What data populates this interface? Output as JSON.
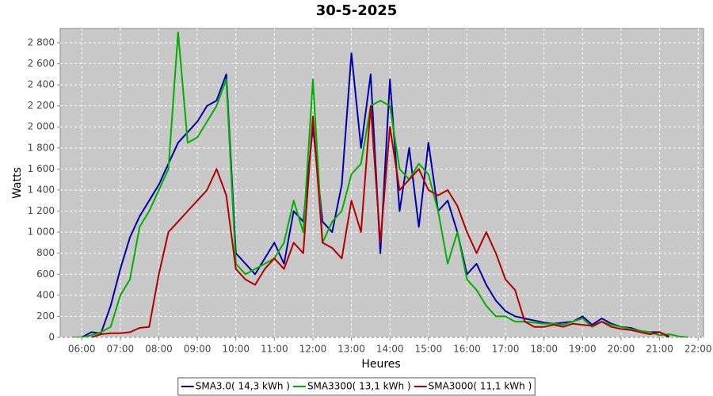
{
  "chart_data": {
    "type": "line",
    "title": "30-5-2025",
    "x_label": "Heures",
    "y_label": "Watts",
    "x": [
      5.75,
      6,
      6.25,
      6.5,
      6.75,
      7,
      7.25,
      7.5,
      7.75,
      8,
      8.25,
      8.5,
      8.75,
      9,
      9.25,
      9.5,
      9.75,
      10,
      10.25,
      10.5,
      10.75,
      11,
      11.25,
      11.5,
      11.75,
      12,
      12.25,
      12.5,
      12.75,
      13,
      13.25,
      13.5,
      13.75,
      14,
      14.25,
      14.5,
      14.75,
      15,
      15.25,
      15.5,
      15.75,
      16,
      16.25,
      16.5,
      16.75,
      17,
      17.25,
      17.5,
      17.75,
      18,
      18.25,
      18.5,
      18.75,
      19,
      19.25,
      19.5,
      19.75,
      20,
      20.25,
      20.5,
      20.75,
      21,
      21.25,
      21.5,
      21.75
    ],
    "series": [
      {
        "name": "SMA3.0( 14,3 kWh )",
        "color": "#0000a8",
        "values": [
          0,
          0,
          50,
          40,
          300,
          650,
          950,
          1150,
          1300,
          1450,
          1650,
          1850,
          1950,
          2050,
          2200,
          2250,
          2500,
          800,
          700,
          600,
          750,
          900,
          700,
          1200,
          1100,
          2000,
          1100,
          1000,
          1450,
          2700,
          1800,
          2500,
          800,
          2450,
          1200,
          1800,
          1050,
          1850,
          1200,
          1300,
          1000,
          600,
          700,
          500,
          350,
          250,
          200,
          180,
          160,
          140,
          130,
          140,
          150,
          200,
          120,
          180,
          130,
          100,
          90,
          60,
          50,
          50,
          0,
          null,
          null
        ]
      },
      {
        "name": "SMA3300( 13,1 kWh )",
        "color": "#00b000",
        "values": [
          0,
          0,
          20,
          50,
          100,
          400,
          550,
          1050,
          1200,
          1400,
          1600,
          2900,
          1850,
          1900,
          2050,
          2200,
          2450,
          700,
          600,
          650,
          700,
          750,
          900,
          1300,
          1000,
          2450,
          900,
          1100,
          1200,
          1550,
          1650,
          2200,
          2250,
          2200,
          1600,
          1500,
          1650,
          1550,
          1200,
          700,
          1000,
          550,
          450,
          300,
          200,
          200,
          150,
          150,
          140,
          130,
          130,
          120,
          150,
          180,
          100,
          150,
          120,
          100,
          80,
          60,
          50,
          20,
          30,
          10,
          0
        ]
      },
      {
        "name": "SMA3000( 11,1 kWh )",
        "color": "#b00000",
        "values": [
          null,
          null,
          0,
          30,
          40,
          40,
          50,
          90,
          100,
          600,
          1000,
          1100,
          1200,
          1300,
          1400,
          1600,
          1350,
          650,
          550,
          500,
          650,
          750,
          650,
          900,
          800,
          2100,
          900,
          850,
          750,
          1300,
          1000,
          2200,
          900,
          2000,
          1400,
          1500,
          1600,
          1400,
          1350,
          1400,
          1250,
          1000,
          800,
          1000,
          800,
          550,
          450,
          150,
          100,
          100,
          120,
          100,
          130,
          120,
          110,
          150,
          100,
          80,
          70,
          50,
          30,
          50,
          10,
          null,
          null
        ]
      }
    ],
    "xlim": [
      5.44,
      22.14
    ],
    "xticks": [
      {
        "value": 6,
        "label": "06:00"
      },
      {
        "value": 7,
        "label": "07:00"
      },
      {
        "value": 8,
        "label": "08:00"
      },
      {
        "value": 9,
        "label": "09:00"
      },
      {
        "value": 10,
        "label": "10:00"
      },
      {
        "value": 11,
        "label": "11:00"
      },
      {
        "value": 12,
        "label": "12:00"
      },
      {
        "value": 13,
        "label": "13:00"
      },
      {
        "value": 14,
        "label": "14:00"
      },
      {
        "value": 15,
        "label": "15:00"
      },
      {
        "value": 16,
        "label": "16:00"
      },
      {
        "value": 17,
        "label": "17:00"
      },
      {
        "value": 18,
        "label": "18:00"
      },
      {
        "value": 19,
        "label": "19:00"
      },
      {
        "value": 20,
        "label": "20:00"
      },
      {
        "value": 21,
        "label": "21:00"
      },
      {
        "value": 22,
        "label": "22:00"
      }
    ],
    "ylim": [
      0,
      2935
    ],
    "yticks": [
      0,
      200,
      400,
      600,
      800,
      {
        "value": 1000,
        "label": "1 000"
      },
      {
        "value": 1200,
        "label": "1 200"
      },
      {
        "value": 1400,
        "label": "1 400"
      },
      {
        "value": 1600,
        "label": "1 600"
      },
      {
        "value": 1800,
        "label": "1 800"
      },
      {
        "value": 2000,
        "label": "2 000"
      },
      {
        "value": 2200,
        "label": "2 200"
      },
      {
        "value": 2400,
        "label": "2 400"
      },
      {
        "value": 2600,
        "label": "2 600"
      },
      {
        "value": 2800,
        "label": "2 800"
      }
    ],
    "grid": true,
    "legend": "bottom"
  }
}
